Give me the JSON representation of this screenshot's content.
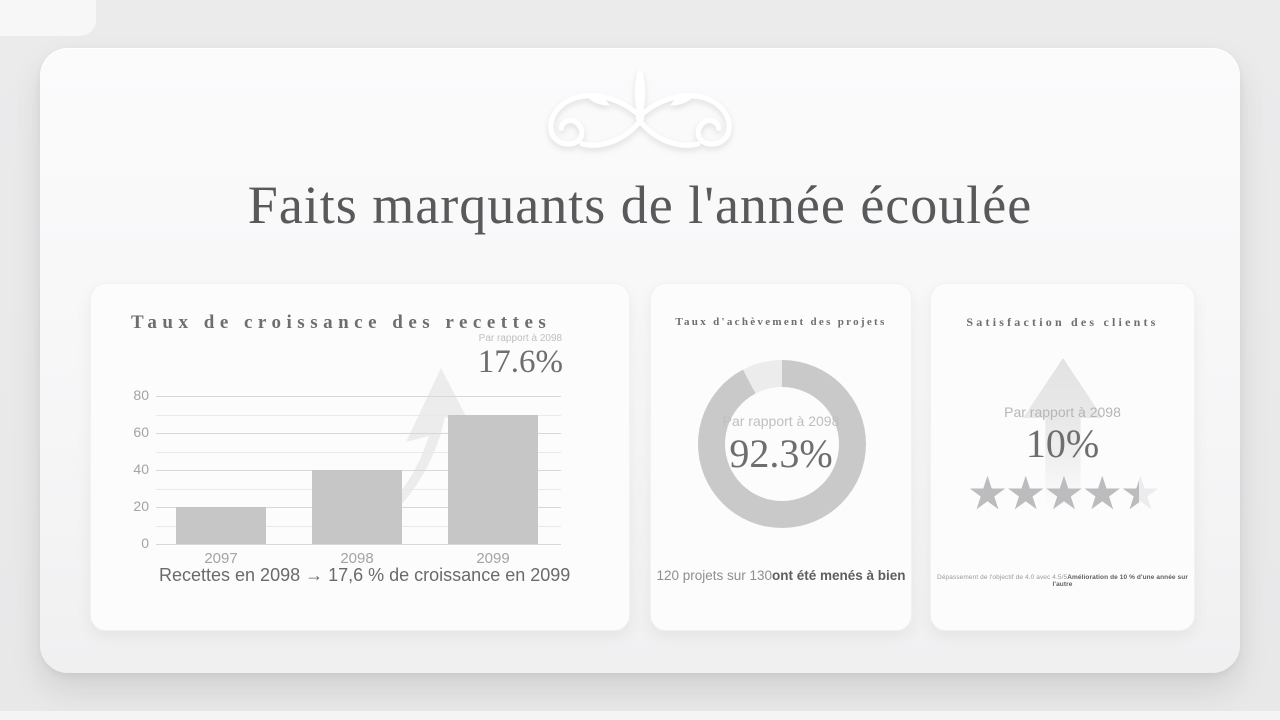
{
  "page": {
    "title": "Faits marquants de l'année écoulée"
  },
  "cards": [
    {
      "title": "Taux de croissance des recettes",
      "compare_label": "Par rapport à 2098",
      "value": "17.6%",
      "caption": "Recettes en 2098 → 17,6 % de croissance en 2099"
    },
    {
      "title": "Taux d'achèvement des projets",
      "compare_label": "Par rapport à 2098",
      "value": "92.3%",
      "caption_normal": "120 projets sur 130",
      "caption_bold": "ont été menés à bien"
    },
    {
      "title": "Satisfaction des clients",
      "compare_label": "Par rapport à 2098",
      "value": "10%",
      "caption_normal": "Dépassement de l'objectif de 4.0 avec 4.5/5",
      "caption_bold": "Amélioration de 10 % d'une année sur l'autre"
    }
  ],
  "chart_data": [
    {
      "type": "bar",
      "title": "Taux de croissance des recettes",
      "categories": [
        "2097",
        "2098",
        "2099"
      ],
      "values": [
        20,
        40,
        70
      ],
      "ylim": [
        0,
        80
      ],
      "yticks": [
        0,
        20,
        40,
        60,
        80
      ],
      "minor_gridlines": [
        10,
        30,
        50,
        70
      ],
      "grid": true,
      "annotation": "17.6%",
      "legend": "none"
    },
    {
      "type": "donut",
      "title": "Taux d'achèvement des projets",
      "value": 92.3,
      "max": 100,
      "center_label": "Par rapport à 2098",
      "center_value": "92.3%"
    },
    {
      "type": "rating",
      "title": "Satisfaction des clients",
      "value": 4.5,
      "max": 5
    }
  ],
  "colors": {
    "bar_fill": "#c6c6c7",
    "donut_ring": "#c9c9ca",
    "donut_remainder": "#ececed",
    "star_filled": "#bcbcbe",
    "star_empty": "#ececee",
    "accent_text": "#6e6e6e"
  }
}
